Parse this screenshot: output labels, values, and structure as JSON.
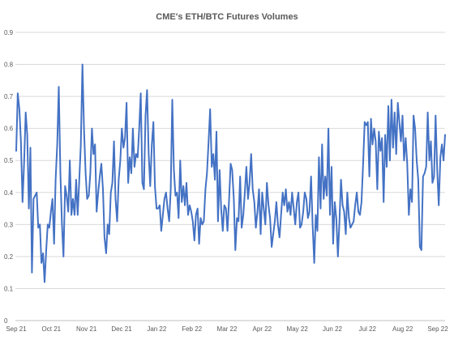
{
  "chart_data": {
    "type": "line",
    "title": "CME's ETH/BTC Futures Volumes",
    "xlabel": "",
    "ylabel": "",
    "ylim": [
      0,
      0.9
    ],
    "yticks": [
      "0",
      "0.1",
      "0.2",
      "0.3",
      "0.4",
      "0.5",
      "0.6",
      "0.7",
      "0.8",
      "0.9"
    ],
    "xticks": [
      "Sep 21",
      "Oct 21",
      "Nov 21",
      "Dec 21",
      "Jan 22",
      "Feb 22",
      "Mar 22",
      "Apr 22",
      "May 22",
      "Jun 22",
      "Jul 22",
      "Aug 22",
      "Sep 22"
    ],
    "grid": true,
    "legend": "none",
    "color": "#4472c4",
    "series": [
      {
        "values": [
          0.53,
          0.71,
          0.66,
          0.56,
          0.37,
          0.49,
          0.65,
          0.58,
          0.35,
          0.54,
          0.15,
          0.38,
          0.39,
          0.4,
          0.29,
          0.3,
          0.18,
          0.21,
          0.12,
          0.22,
          0.3,
          0.29,
          0.34,
          0.38,
          0.24,
          0.44,
          0.55,
          0.73,
          0.46,
          0.3,
          0.2,
          0.42,
          0.39,
          0.34,
          0.5,
          0.33,
          0.38,
          0.33,
          0.44,
          0.33,
          0.44,
          0.55,
          0.8,
          0.6,
          0.46,
          0.38,
          0.39,
          0.46,
          0.6,
          0.52,
          0.55,
          0.34,
          0.4,
          0.45,
          0.49,
          0.41,
          0.26,
          0.21,
          0.3,
          0.27,
          0.4,
          0.43,
          0.56,
          0.38,
          0.31,
          0.44,
          0.5,
          0.6,
          0.54,
          0.57,
          0.68,
          0.43,
          0.51,
          0.46,
          0.6,
          0.48,
          0.52,
          0.51,
          0.6,
          0.71,
          0.43,
          0.41,
          0.64,
          0.72,
          0.52,
          0.42,
          0.55,
          0.62,
          0.42,
          0.35,
          0.35,
          0.36,
          0.28,
          0.33,
          0.38,
          0.4,
          0.35,
          0.31,
          0.41,
          0.69,
          0.47,
          0.39,
          0.4,
          0.32,
          0.5,
          0.37,
          0.42,
          0.36,
          0.43,
          0.33,
          0.36,
          0.34,
          0.31,
          0.25,
          0.33,
          0.35,
          0.24,
          0.32,
          0.3,
          0.31,
          0.41,
          0.46,
          0.56,
          0.66,
          0.48,
          0.52,
          0.44,
          0.59,
          0.31,
          0.47,
          0.35,
          0.28,
          0.36,
          0.35,
          0.28,
          0.38,
          0.49,
          0.47,
          0.38,
          0.22,
          0.32,
          0.31,
          0.45,
          0.29,
          0.33,
          0.4,
          0.48,
          0.38,
          0.43,
          0.52,
          0.41,
          0.37,
          0.29,
          0.34,
          0.41,
          0.27,
          0.4,
          0.35,
          0.3,
          0.43,
          0.36,
          0.32,
          0.23,
          0.27,
          0.31,
          0.37,
          0.3,
          0.26,
          0.33,
          0.4,
          0.36,
          0.41,
          0.34,
          0.37,
          0.33,
          0.4,
          0.35,
          0.3,
          0.37,
          0.4,
          0.29,
          0.3,
          0.34,
          0.4,
          0.38,
          0.32,
          0.34,
          0.45,
          0.3,
          0.18,
          0.33,
          0.28,
          0.51,
          0.35,
          0.55,
          0.38,
          0.45,
          0.39,
          0.6,
          0.33,
          0.48,
          0.24,
          0.37,
          0.32,
          0.2,
          0.31,
          0.44,
          0.36,
          0.34,
          0.27,
          0.4,
          0.32,
          0.29,
          0.3,
          0.31,
          0.36,
          0.4,
          0.34,
          0.33,
          0.37,
          0.49,
          0.62,
          0.61,
          0.62,
          0.45,
          0.63,
          0.55,
          0.6,
          0.56,
          0.41,
          0.59,
          0.53,
          0.57,
          0.37,
          0.58,
          0.48,
          0.67,
          0.5,
          0.69,
          0.54,
          0.65,
          0.52,
          0.68,
          0.62,
          0.56,
          0.64,
          0.5,
          0.57,
          0.49,
          0.33,
          0.41,
          0.37,
          0.64,
          0.6,
          0.5,
          0.44,
          0.23,
          0.22,
          0.45,
          0.46,
          0.48,
          0.65,
          0.5,
          0.56,
          0.43,
          0.45,
          0.64,
          0.47,
          0.36,
          0.51,
          0.55,
          0.5,
          0.58
        ]
      }
    ]
  }
}
